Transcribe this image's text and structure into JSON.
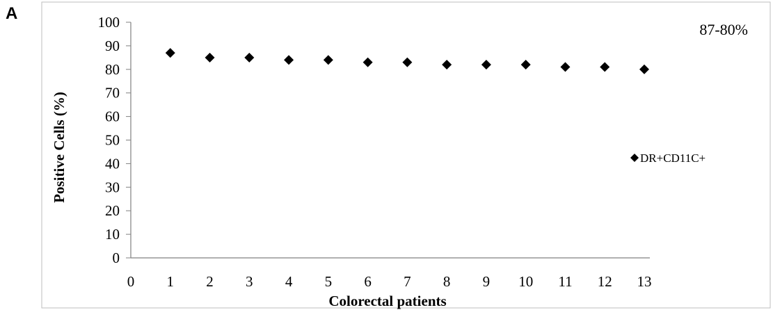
{
  "panel_label": "A",
  "chart_data": {
    "type": "scatter",
    "title": "",
    "xlabel": "Colorectal patients",
    "ylabel": "Positive Cells (%)",
    "xlim": [
      0,
      13
    ],
    "ylim": [
      0,
      100
    ],
    "x_ticks": [
      0,
      1,
      2,
      3,
      4,
      5,
      6,
      7,
      8,
      9,
      10,
      11,
      12,
      13
    ],
    "y_ticks": [
      0,
      10,
      20,
      30,
      40,
      50,
      60,
      70,
      80,
      90,
      100
    ],
    "grid": false,
    "legend_position": "right",
    "annotation": "87-80%",
    "series": [
      {
        "name": "DR+CD11C+",
        "marker": "diamond",
        "color": "#000000",
        "x": [
          1,
          2,
          3,
          4,
          5,
          6,
          7,
          8,
          9,
          10,
          11,
          12,
          13
        ],
        "y": [
          87,
          85,
          85,
          84,
          84,
          83,
          83,
          82,
          82,
          82,
          81,
          81,
          80
        ]
      }
    ]
  }
}
